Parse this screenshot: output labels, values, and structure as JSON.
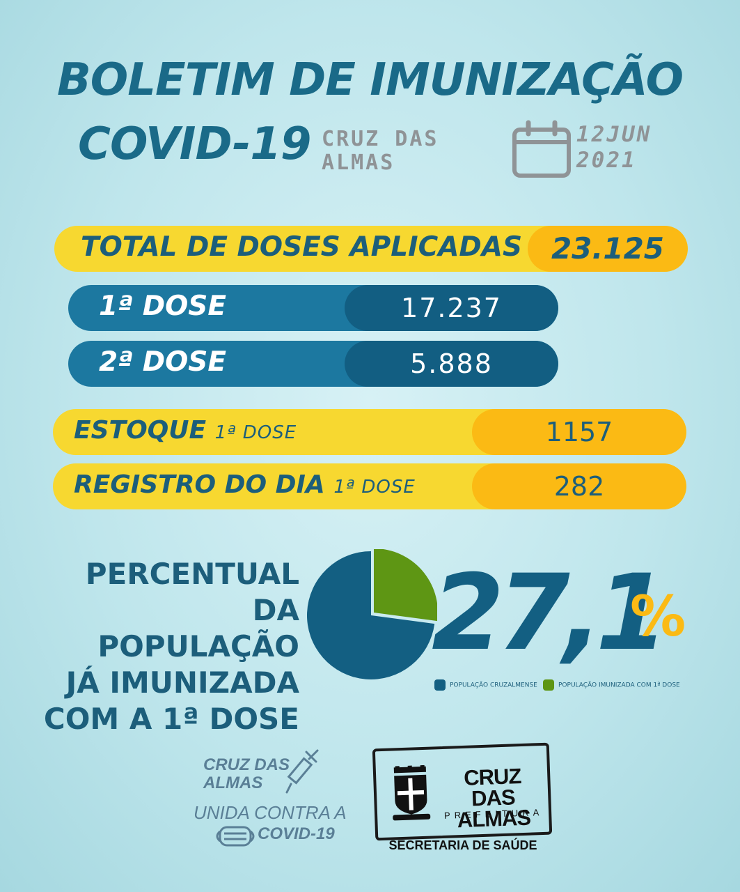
{
  "header": {
    "title": "BOLETIM DE IMUNIZAÇÃO",
    "subtitle": "COVID-19",
    "place_line1": "CRUZ DAS",
    "place_line2": "ALMAS",
    "date_line1": "12JUN",
    "date_line2": "2021"
  },
  "total": {
    "label": "TOTAL DE DOSES APLICADAS",
    "value": "23.125"
  },
  "doses": [
    {
      "label": "1ª DOSE",
      "value": "17.237"
    },
    {
      "label": "2ª DOSE",
      "value": "5.888"
    }
  ],
  "stock": {
    "label": "ESTOQUE",
    "sub": "1ª DOSE",
    "value": "1157"
  },
  "daily": {
    "label": "REGISTRO DO DIA",
    "sub": "1ª DOSE",
    "value": "282"
  },
  "percent": {
    "lines": [
      "PERCENTUAL",
      "DA POPULAÇÃO",
      "JÁ IMUNIZADA",
      "COM A 1ª DOSE"
    ],
    "number": "27,1",
    "symbol": "%"
  },
  "chart_data": {
    "type": "pie",
    "slices": [
      {
        "name": "POPULAÇÃO CRUZALMENSE",
        "value": 72.9,
        "color": "#135f82"
      },
      {
        "name": "POPULAÇÃO IMUNIZADA COM 1ª DOSE",
        "value": 27.1,
        "color": "#5e9614"
      }
    ]
  },
  "legend": [
    "POPULAÇÃO CRUZALMENSE",
    "POPULAÇÃO IMUNIZADA COM 1ª DOSE"
  ],
  "campaign": {
    "line1": "CRUZ DAS",
    "line2": "ALMAS",
    "line3": "UNIDA CONTRA A",
    "line4": "COVID-19"
  },
  "logo": {
    "line1": "CRUZ",
    "line2": "DAS ALMAS",
    "line3": "PREFEITURA",
    "dept": "SECRETARIA DE SAÚDE"
  },
  "colors": {
    "blue": "#1c5e7b",
    "yellow": "#f7d830",
    "orange": "#fbba14",
    "green": "#5e9614"
  }
}
